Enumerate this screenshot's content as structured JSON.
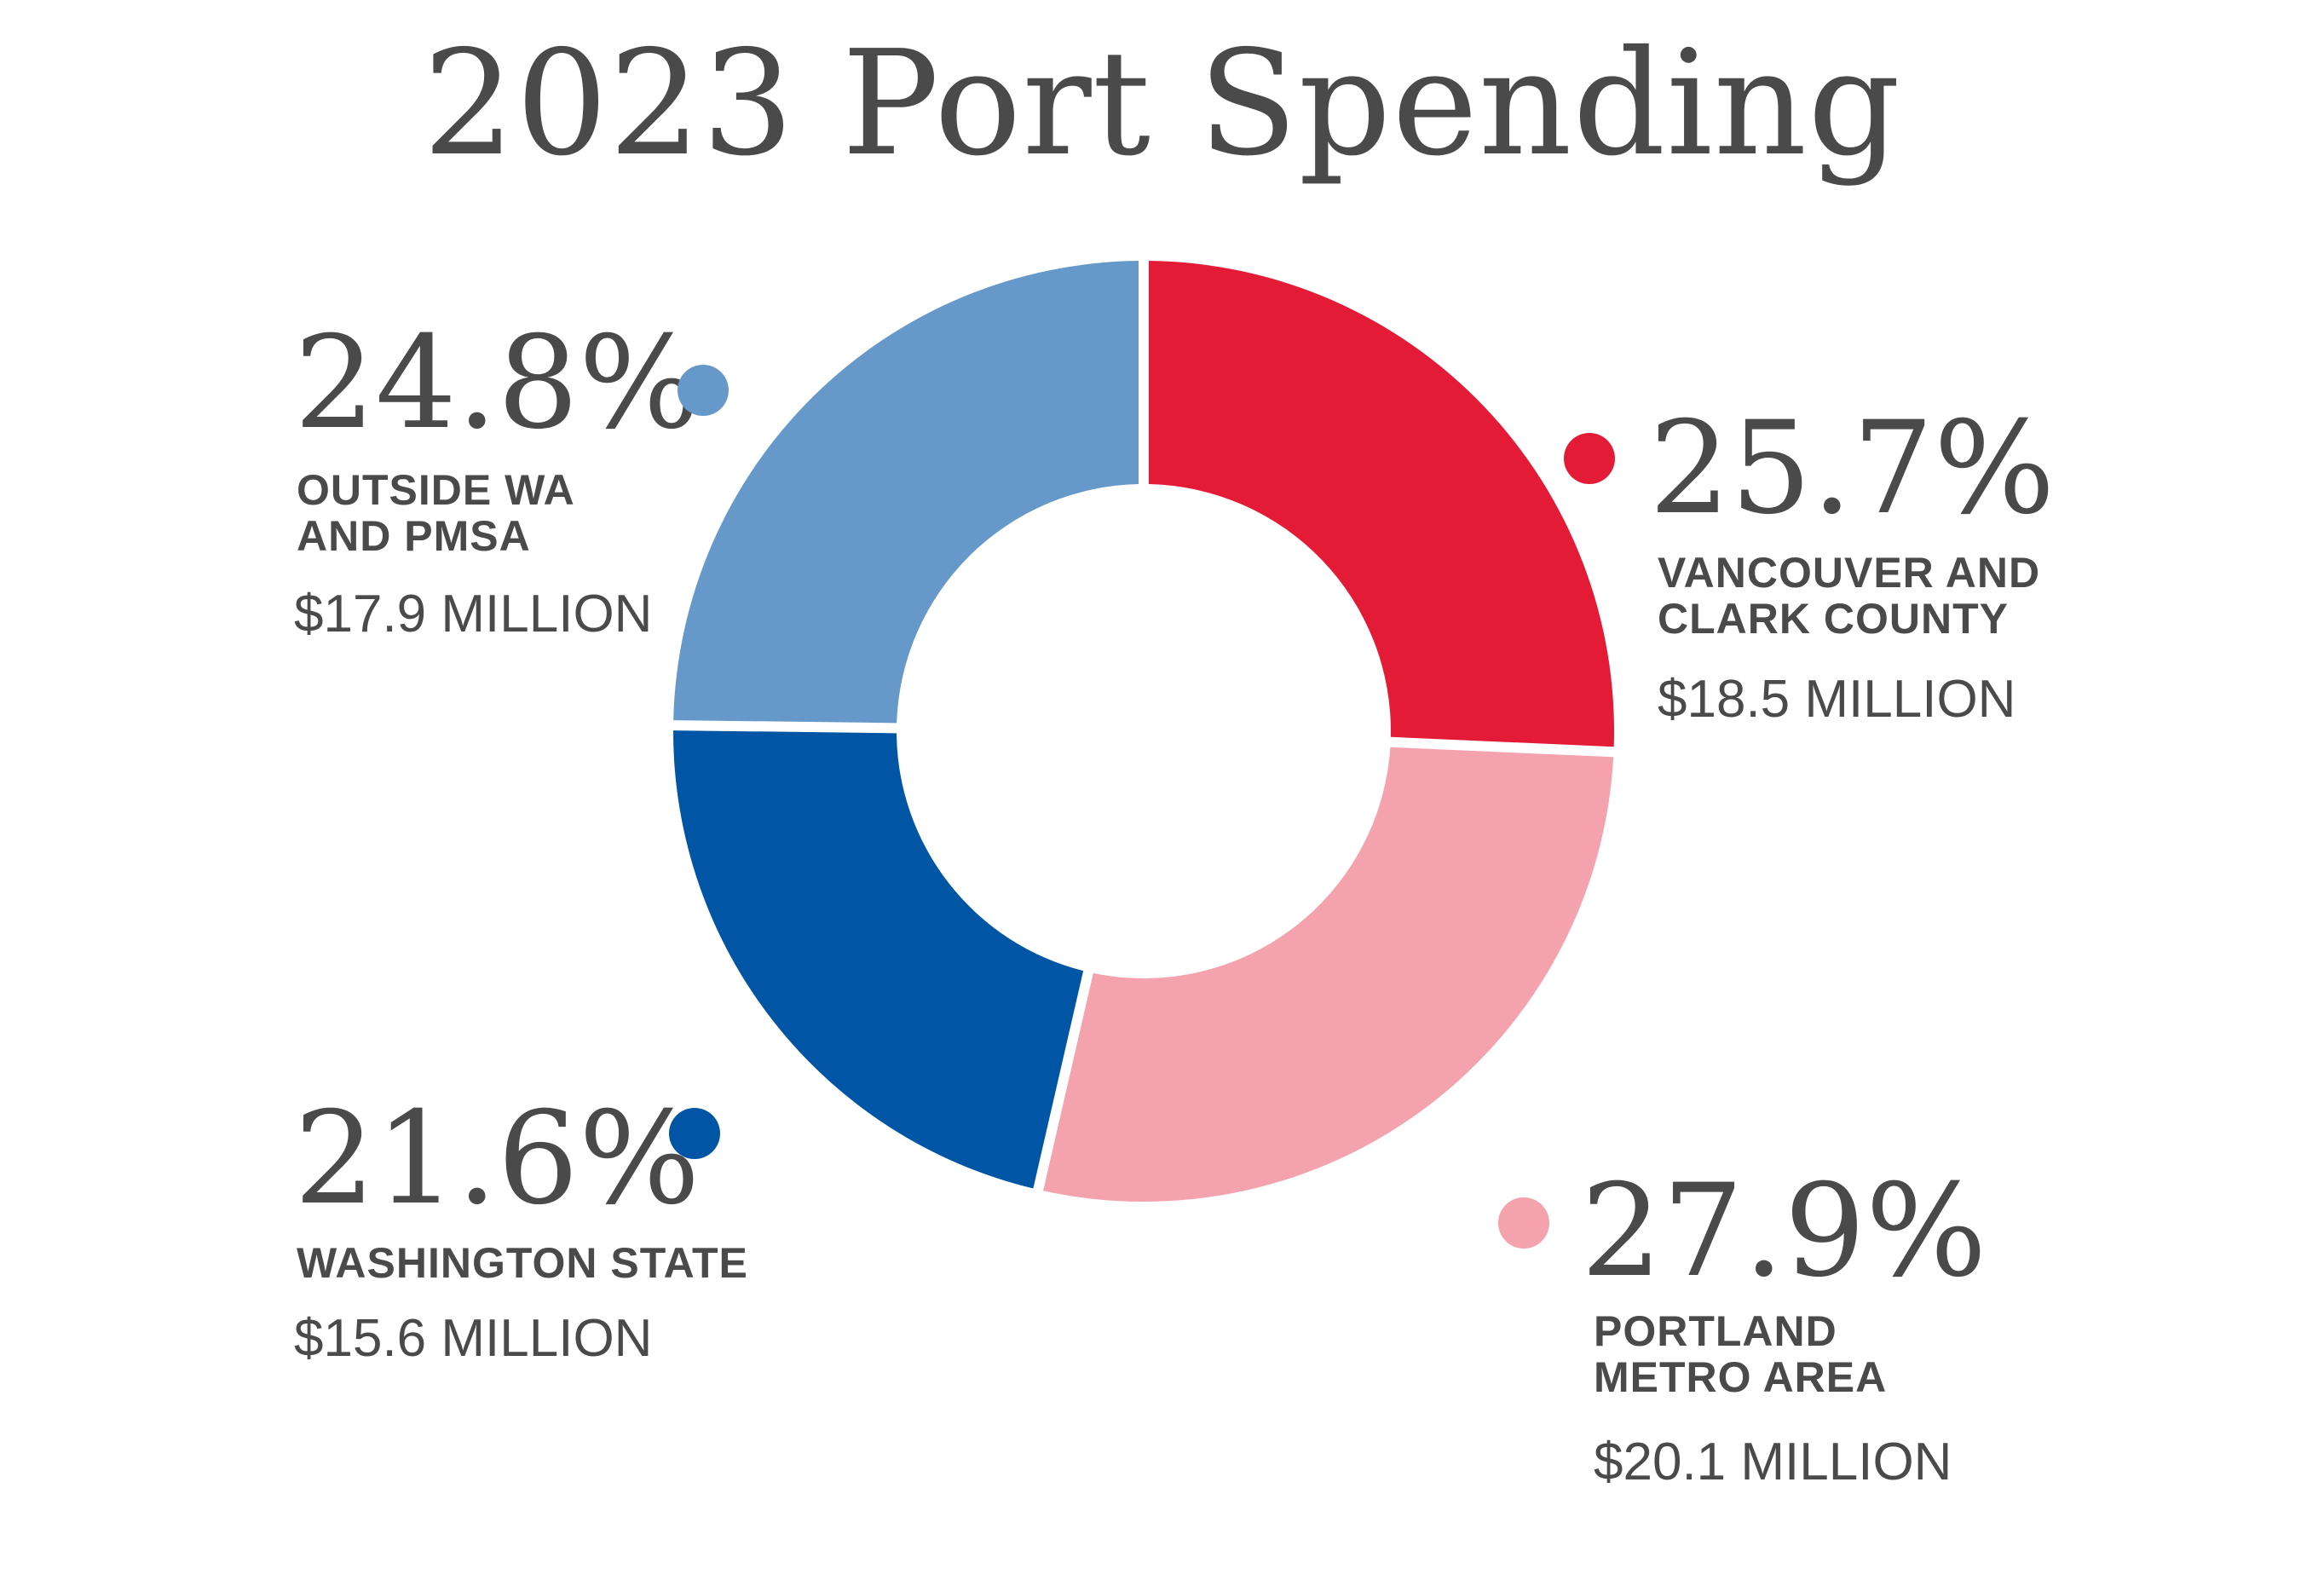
{
  "title": "2023 Port Spending",
  "colors": {
    "text": "#4a4a4a",
    "vancouver": "#e31b37",
    "portland": "#f4a3ae",
    "washington": "#0055a5",
    "outside": "#6699c9"
  },
  "chart_data": {
    "type": "donut",
    "title": "2023 Port Spending",
    "unit": "$ million",
    "slices": [
      {
        "name": "Vancouver and Clark County",
        "percent": 25.7,
        "percent_label": "25.7%",
        "label_lines": [
          "VANCOUVER AND",
          "CLARK COUNTY"
        ],
        "amount": 18.5,
        "amount_label": "$18.5 MILLION",
        "color": "#e31b37"
      },
      {
        "name": "Portland Metro Area",
        "percent": 27.9,
        "percent_label": "27.9%",
        "label_lines": [
          "PORTLAND",
          "METRO AREA"
        ],
        "amount": 20.1,
        "amount_label": "$20.1 MILLION",
        "color": "#f4a3ae"
      },
      {
        "name": "Washington State",
        "percent": 21.6,
        "percent_label": "21.6%",
        "label_lines": [
          "WASHINGTON STATE"
        ],
        "amount": 15.6,
        "amount_label": "$15.6 MILLION",
        "color": "#0055a5"
      },
      {
        "name": "Outside WA and PMSA",
        "percent": 24.8,
        "percent_label": "24.8%",
        "label_lines": [
          "OUTSIDE WA",
          "AND PMSA"
        ],
        "amount": 17.9,
        "amount_label": "$17.9 MILLION",
        "color": "#6699c9"
      }
    ]
  }
}
